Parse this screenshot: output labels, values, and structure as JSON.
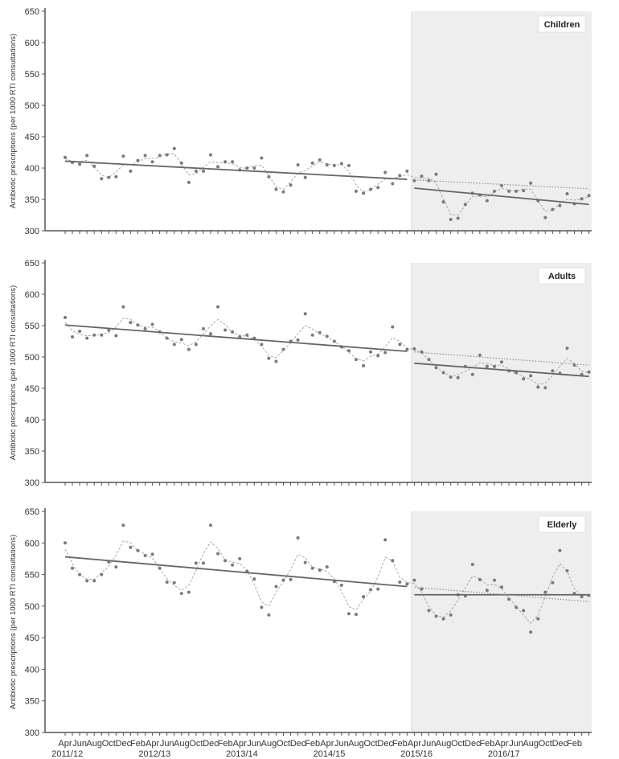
{
  "chart_data": {
    "type": "line",
    "ylabel": "Antibiotic prescriptions (per 1000 RTI consultations)",
    "ylim": [
      300,
      650
    ],
    "yticks": [
      300,
      350,
      400,
      450,
      500,
      550,
      600,
      650
    ],
    "intervention_start_index": 48,
    "month_labels": [
      "Apr",
      "Jun",
      "Aug",
      "Oct",
      "Dec",
      "Feb",
      "Apr",
      "Jun",
      "Aug",
      "Oct",
      "Dec",
      "Feb",
      "Apr",
      "Jun",
      "Aug",
      "Oct",
      "Dec",
      "Feb",
      "Apr",
      "Jun",
      "Aug",
      "Oct",
      "Dec",
      "Feb",
      "Apr",
      "Jun",
      "Aug",
      "Oct",
      "Dec",
      "Feb",
      "Apr",
      "Jun",
      "Aug",
      "Oct",
      "Dec",
      "Feb"
    ],
    "year_labels": [
      "2011/12",
      "2012/13",
      "2013/14",
      "2014/15",
      "2015/16",
      "2016/17"
    ],
    "colors": {
      "points": "#7a7a7a",
      "smoothed": "#a9a9a9",
      "trend": "#666666",
      "counterfactual": "#8f8f8f",
      "shading": "#eeeeee",
      "axis": "#555555"
    },
    "panels": [
      {
        "name": "Children",
        "values": [
          417,
          409,
          406,
          420,
          403,
          383,
          385,
          386,
          419,
          395,
          412,
          420,
          410,
          420,
          421,
          431,
          408,
          377,
          395,
          395,
          421,
          402,
          410,
          410,
          397,
          400,
          400,
          416,
          386,
          366,
          362,
          373,
          405,
          385,
          408,
          413,
          405,
          404,
          407,
          404,
          363,
          360,
          366,
          369,
          393,
          375,
          388,
          395,
          380,
          387,
          380,
          390,
          346,
          318,
          320,
          342,
          360,
          357,
          348,
          363,
          372,
          363,
          363,
          364,
          376,
          348,
          321,
          334,
          340,
          359,
          343,
          351,
          356
        ],
        "trend_pre": [
          411,
          382
        ],
        "trend_post": [
          368,
          342
        ],
        "counterfactual": [
          381,
          367
        ]
      },
      {
        "name": "Adults",
        "values": [
          563,
          532,
          541,
          530,
          535,
          535,
          543,
          534,
          580,
          555,
          551,
          545,
          552,
          540,
          530,
          520,
          528,
          512,
          520,
          545,
          537,
          580,
          543,
          540,
          532,
          535,
          530,
          520,
          498,
          493,
          512,
          525,
          527,
          569,
          535,
          539,
          533,
          525,
          516,
          510,
          496,
          486,
          508,
          502,
          507,
          548,
          520,
          512,
          513,
          508,
          496,
          483,
          475,
          468,
          467,
          485,
          472,
          503,
          485,
          485,
          492,
          478,
          475,
          465,
          470,
          452,
          451,
          478,
          474,
          514,
          487,
          472,
          476
        ],
        "trend_pre": [
          551,
          509
        ],
        "trend_post": [
          490,
          469
        ],
        "counterfactual": [
          508,
          487
        ]
      },
      {
        "name": "Elderly",
        "values": [
          600,
          560,
          550,
          540,
          540,
          550,
          570,
          562,
          628,
          593,
          588,
          580,
          582,
          560,
          538,
          537,
          520,
          522,
          568,
          568,
          628,
          583,
          572,
          565,
          575,
          555,
          543,
          498,
          486,
          531,
          541,
          542,
          608,
          569,
          560,
          557,
          562,
          539,
          533,
          488,
          487,
          515,
          526,
          527,
          605,
          572,
          538,
          535,
          541,
          527,
          493,
          484,
          480,
          486,
          518,
          516,
          566,
          542,
          525,
          541,
          530,
          511,
          498,
          493,
          459,
          480,
          522,
          537,
          588,
          556,
          520,
          515,
          517
        ],
        "trend_pre": [
          578,
          531
        ],
        "trend_post": [
          518,
          518
        ],
        "counterfactual": [
          530,
          507
        ]
      }
    ]
  }
}
